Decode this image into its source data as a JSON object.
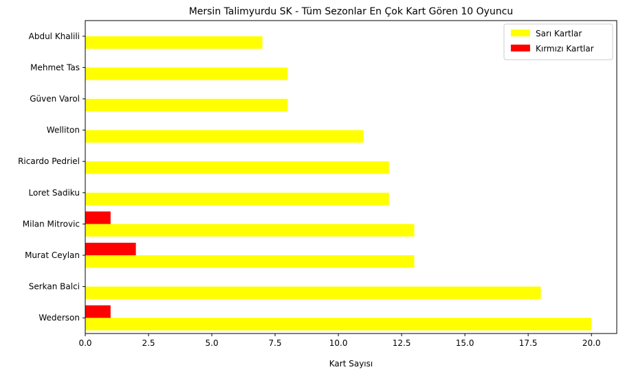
{
  "chart_data": {
    "type": "bar",
    "orientation": "horizontal",
    "title": "Mersin Talimyurdu SK - Tüm Sezonlar En Çok Kart Gören 10 Oyuncu",
    "xlabel": "Kart Sayısı",
    "ylabel": "",
    "xlim": [
      0,
      21
    ],
    "xticks": [
      "0.0",
      "2.5",
      "5.0",
      "7.5",
      "10.0",
      "12.5",
      "15.0",
      "17.5",
      "20.0"
    ],
    "grid": false,
    "legend_position": "top-right",
    "categories": [
      "Wederson",
      "Serkan Balci",
      "Murat Ceylan",
      "Milan Mitrovic",
      "Loret Sadiku",
      "Ricardo Pedriel",
      "Welliton",
      "Güven Varol",
      "Mehmet Tas",
      "Abdul Khalili"
    ],
    "series": [
      {
        "name": "Sarı Kartlar",
        "color": "#ffff00",
        "values": [
          20,
          18,
          13,
          13,
          12,
          12,
          11,
          8,
          8,
          7
        ]
      },
      {
        "name": "Kırmızı Kartlar",
        "color": "#ff0000",
        "values": [
          1,
          0,
          2,
          1,
          0,
          0,
          0,
          0,
          0,
          0
        ]
      }
    ]
  }
}
